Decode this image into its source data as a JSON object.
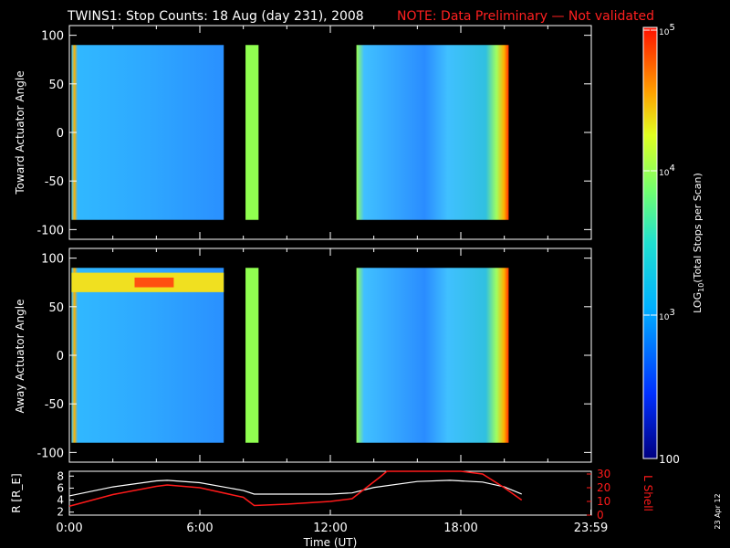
{
  "header": {
    "title": "TWINS1: Stop Counts: 18 Aug (day 231), 2008",
    "note": "NOTE: Data Preliminary — Not validated"
  },
  "side_date": "23 Apr 12",
  "colors": {
    "note": "#ff2020",
    "axis": "#ffffff",
    "lshell": "#ff1a1a",
    "r": "#ffffff",
    "bg": "#000000"
  },
  "chart_data": [
    {
      "type": "heatmap",
      "title": "",
      "ylabel": "Toward Actuator Angle",
      "ylim": [
        -110,
        110
      ],
      "yticks": [
        "100",
        "50",
        "0",
        "-50",
        "-100"
      ],
      "xlim_hours": [
        0,
        24
      ],
      "segments_hours": [
        [
          0.1,
          7.1
        ],
        [
          8.1,
          8.7
        ],
        [
          13.2,
          20.2
        ]
      ],
      "dominant_color": "cyan-blue (~10^3)"
    },
    {
      "type": "heatmap",
      "title": "",
      "ylabel": "Away Actuator Angle",
      "ylim": [
        -110,
        110
      ],
      "yticks": [
        "100",
        "50",
        "0",
        "-50",
        "-100"
      ],
      "xlim_hours": [
        0,
        24
      ],
      "segments_hours": [
        [
          0.1,
          7.1
        ],
        [
          8.1,
          8.7
        ],
        [
          13.2,
          20.2
        ]
      ],
      "feature": "high counts near +75° around 3–5 UT"
    },
    {
      "type": "line",
      "ylabel_left": "R [R_E]",
      "ylabel_right": "L Shell",
      "yticks_left": [
        "8",
        "6",
        "4",
        "2"
      ],
      "yticks_right": [
        "30",
        "20",
        "10",
        "0"
      ],
      "xlabel": "Time (UT)",
      "xticks": [
        "0:00",
        "6:00",
        "12:00",
        "18:00",
        "23:59"
      ],
      "series": [
        {
          "name": "R",
          "x": [
            0,
            2,
            4,
            4.5,
            6,
            8,
            8.5,
            10,
            12,
            13,
            14,
            16,
            17.5,
            19,
            20,
            20.8
          ],
          "y": [
            4.7,
            6.2,
            7.2,
            7.3,
            6.9,
            5.6,
            5.0,
            5.0,
            5.0,
            5.2,
            6.1,
            7.1,
            7.3,
            7.0,
            6.2,
            5.0
          ]
        },
        {
          "name": "L Shell",
          "x": [
            0,
            2,
            4,
            4.5,
            6,
            8,
            8.5,
            10,
            12,
            13,
            14.3,
            14.6,
            16,
            17,
            18,
            19,
            20,
            20.8
          ],
          "y": [
            6.5,
            15,
            21,
            22,
            20,
            13,
            7,
            8,
            10,
            12,
            28,
            33,
            40,
            42,
            40,
            30,
            20,
            11
          ]
        }
      ]
    }
  ],
  "colorbar": {
    "label": "LOG",
    "label_sub": "10",
    "label_rest": "(Total Stops per Scan)",
    "ticks": [
      {
        "base": "10",
        "exp": "5"
      },
      {
        "base": "10",
        "exp": "4"
      },
      {
        "base": "10",
        "exp": "3"
      },
      {
        "base": "100",
        "exp": ""
      }
    ]
  }
}
